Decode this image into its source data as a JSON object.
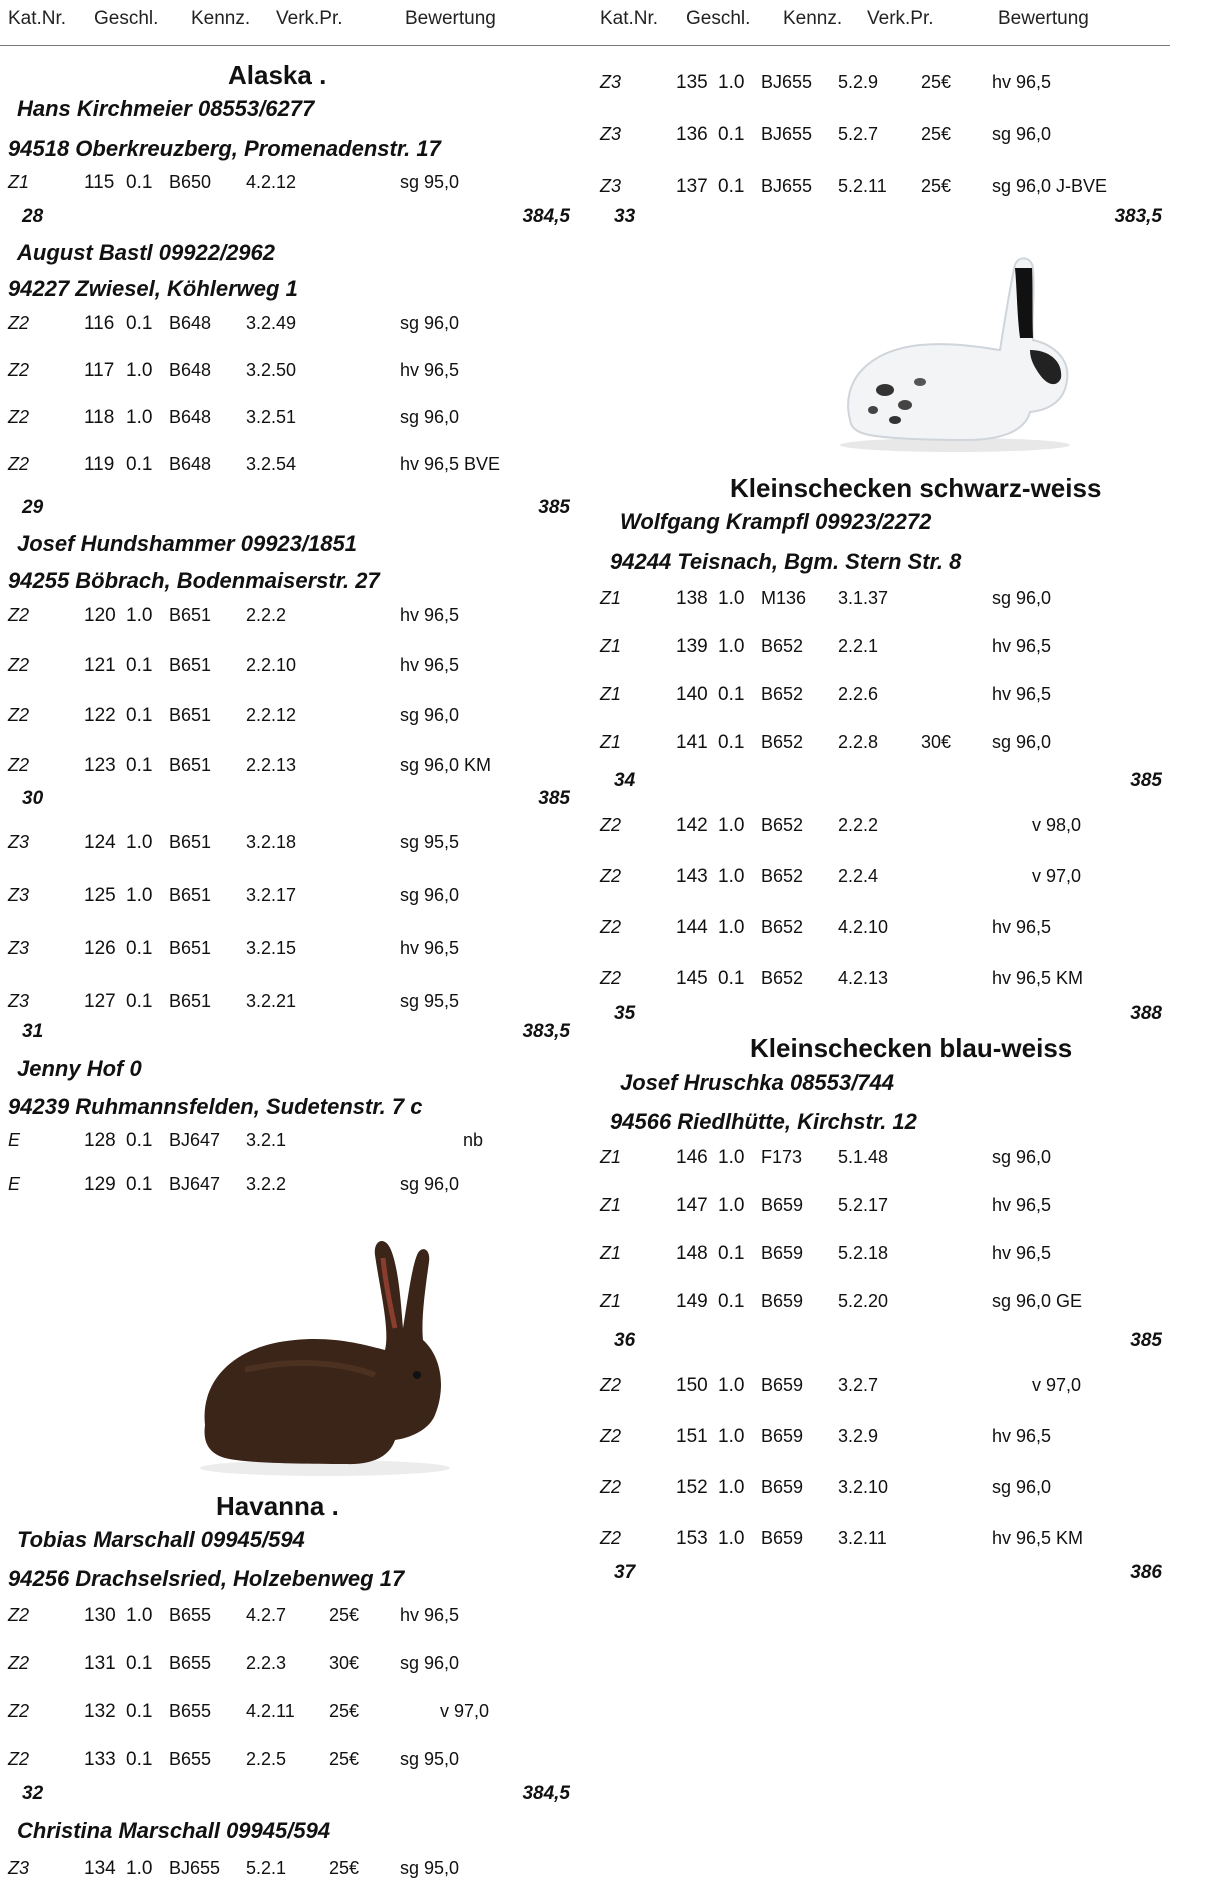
{
  "header": {
    "cat": "Kat.Nr.",
    "sex": "Geschl.",
    "tag": "Kennz.",
    "price": "Verk.Pr.",
    "rating": "Bewertung"
  },
  "left": {
    "alaska": {
      "title": "Alaska .",
      "b1": {
        "owner": "Hans Kirchmeier  08553/6277",
        "addr": "94518 Oberkreuzberg, Promenadenstr. 17",
        "rows": [
          [
            "Z1",
            "115",
            "0.1",
            "B650",
            "4.2.12",
            "",
            "sg 95,0"
          ]
        ],
        "total": [
          "28",
          "384,5"
        ]
      },
      "b2": {
        "owner": "August Bastl  09922/2962",
        "addr": "94227 Zwiesel, Köhlerweg 1",
        "rows": [
          [
            "Z2",
            "116",
            "0.1",
            "B648",
            "3.2.49",
            "",
            "sg 96,0"
          ],
          [
            "Z2",
            "117",
            "1.0",
            "B648",
            "3.2.50",
            "",
            "hv 96,5"
          ],
          [
            "Z2",
            "118",
            "1.0",
            "B648",
            "3.2.51",
            "",
            "sg 96,0"
          ],
          [
            "Z2",
            "119",
            "0.1",
            "B648",
            "3.2.54",
            "",
            "hv 96,5 BVE"
          ]
        ],
        "total": [
          "29",
          "385"
        ]
      },
      "b3": {
        "owner": "Josef Hundshammer  09923/1851",
        "addr": "94255 Böbrach, Bodenmaiserstr. 27",
        "rows": [
          [
            "Z2",
            "120",
            "1.0",
            "B651",
            "2.2.2",
            "",
            "hv 96,5"
          ],
          [
            "Z2",
            "121",
            "0.1",
            "B651",
            "2.2.10",
            "",
            "hv 96,5"
          ],
          [
            "Z2",
            "122",
            "0.1",
            "B651",
            "2.2.12",
            "",
            "sg 96,0"
          ],
          [
            "Z2",
            "123",
            "0.1",
            "B651",
            "2.2.13",
            "",
            "sg 96,0 KM"
          ]
        ],
        "total": [
          "30",
          "385"
        ],
        "rows2": [
          [
            "Z3",
            "124",
            "1.0",
            "B651",
            "3.2.18",
            "",
            "sg 95,5"
          ],
          [
            "Z3",
            "125",
            "1.0",
            "B651",
            "3.2.17",
            "",
            "sg 96,0"
          ],
          [
            "Z3",
            "126",
            "0.1",
            "B651",
            "3.2.15",
            "",
            "hv 96,5"
          ],
          [
            "Z3",
            "127",
            "0.1",
            "B651",
            "3.2.21",
            "",
            "sg 95,5"
          ]
        ],
        "total2": [
          "31",
          "383,5"
        ]
      },
      "b4": {
        "owner": "Jenny Hof  0",
        "addr": "94239 Ruhmannsfelden, Sudetenstr. 7 c",
        "rows": [
          [
            "E",
            "128",
            "0.1",
            "BJ647",
            "3.2.1",
            "",
            "nb"
          ],
          [
            "E",
            "129",
            "0.1",
            "BJ647",
            "3.2.2",
            "",
            "sg 96,0"
          ]
        ]
      }
    },
    "havanna": {
      "title": "Havanna .",
      "b1": {
        "owner": "Tobias Marschall  09945/594",
        "addr": "94256 Drachselsried, Holzebenweg 17",
        "rows": [
          [
            "Z2",
            "130",
            "1.0",
            "B655",
            "4.2.7",
            "25€",
            "hv 96,5"
          ],
          [
            "Z2",
            "131",
            "0.1",
            "B655",
            "2.2.3",
            "30€",
            "sg 96,0"
          ],
          [
            "Z2",
            "132",
            "0.1",
            "B655",
            "4.2.11",
            "25€",
            "v 97,0"
          ],
          [
            "Z2",
            "133",
            "0.1",
            "B655",
            "2.2.5",
            "25€",
            "sg 95,0"
          ]
        ],
        "total": [
          "32",
          "384,5"
        ]
      },
      "b2": {
        "owner": "Christina Marschall  09945/594",
        "rows": [
          [
            "Z3",
            "134",
            "1.0",
            "BJ655",
            "5.2.1",
            "25€",
            "sg 95,0"
          ]
        ]
      }
    }
  },
  "right": {
    "cont": {
      "rows": [
        [
          "Z3",
          "135",
          "1.0",
          "BJ655",
          "5.2.9",
          "25€",
          "hv 96,5"
        ],
        [
          "Z3",
          "136",
          "0.1",
          "BJ655",
          "5.2.7",
          "25€",
          "sg 96,0"
        ],
        [
          "Z3",
          "137",
          "0.1",
          "BJ655",
          "5.2.11",
          "25€",
          "sg 96,0 J-BVE"
        ]
      ],
      "total": [
        "33",
        "383,5"
      ]
    },
    "ksw": {
      "title": "Kleinschecken schwarz-weiss",
      "owner": "Wolfgang Krampfl  09923/2272",
      "addr": "94244 Teisnach, Bgm. Stern Str. 8",
      "rows": [
        [
          "Z1",
          "138",
          "1.0",
          "M136",
          "3.1.37",
          "",
          "sg 96,0"
        ],
        [
          "Z1",
          "139",
          "1.0",
          "B652",
          "2.2.1",
          "",
          "hv 96,5"
        ],
        [
          "Z1",
          "140",
          "0.1",
          "B652",
          "2.2.6",
          "",
          "hv 96,5"
        ],
        [
          "Z1",
          "141",
          "0.1",
          "B652",
          "2.2.8",
          "30€",
          "sg 96,0"
        ]
      ],
      "total": [
        "34",
        "385"
      ],
      "rows2": [
        [
          "Z2",
          "142",
          "1.0",
          "B652",
          "2.2.2",
          "",
          "v 98,0"
        ],
        [
          "Z2",
          "143",
          "1.0",
          "B652",
          "2.2.4",
          "",
          "v 97,0"
        ],
        [
          "Z2",
          "144",
          "1.0",
          "B652",
          "4.2.10",
          "",
          "hv 96,5"
        ],
        [
          "Z2",
          "145",
          "0.1",
          "B652",
          "4.2.13",
          "",
          "hv 96,5 KM"
        ]
      ],
      "total2": [
        "35",
        "388"
      ]
    },
    "kbw": {
      "title": "Kleinschecken blau-weiss",
      "owner": "Josef Hruschka  08553/744",
      "addr": "94566 Riedlhütte, Kirchstr. 12",
      "rows": [
        [
          "Z1",
          "146",
          "1.0",
          "F173",
          "5.1.48",
          "",
          "sg 96,0"
        ],
        [
          "Z1",
          "147",
          "1.0",
          "B659",
          "5.2.17",
          "",
          "hv 96,5"
        ],
        [
          "Z1",
          "148",
          "0.1",
          "B659",
          "5.2.18",
          "",
          "hv 96,5"
        ],
        [
          "Z1",
          "149",
          "0.1",
          "B659",
          "5.2.20",
          "",
          "sg 96,0 GE"
        ]
      ],
      "total": [
        "36",
        "385"
      ],
      "rows2": [
        [
          "Z2",
          "150",
          "1.0",
          "B659",
          "3.2.7",
          "",
          "v 97,0"
        ],
        [
          "Z2",
          "151",
          "1.0",
          "B659",
          "3.2.9",
          "",
          "hv 96,5"
        ],
        [
          "Z2",
          "152",
          "1.0",
          "B659",
          "3.2.10",
          "",
          "sg 96,0"
        ],
        [
          "Z2",
          "153",
          "1.0",
          "B659",
          "3.2.11",
          "",
          "hv 96,5 KM"
        ]
      ],
      "total2": [
        "37",
        "386"
      ]
    }
  },
  "images": {
    "havanna": "havanna-rabbit-photo",
    "kleinschecken": "kleinschecken-rabbit-photo"
  }
}
